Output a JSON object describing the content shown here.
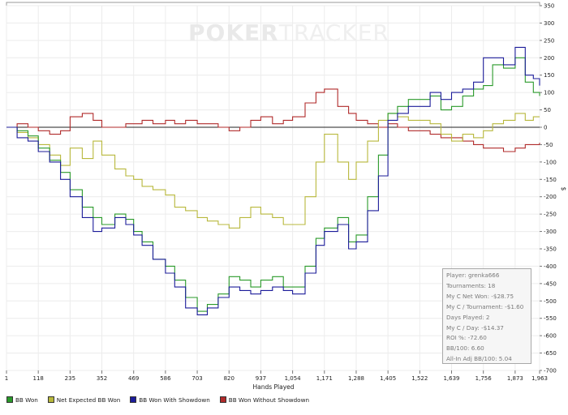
{
  "watermark": {
    "bold": "POKER",
    "light": "TRACKER"
  },
  "chart_data": {
    "type": "line",
    "title": "",
    "xlabel": "Hands Played",
    "ylabel": "$",
    "x_ticks": [
      1,
      118,
      235,
      352,
      469,
      586,
      703,
      820,
      937,
      1054,
      1171,
      1288,
      1405,
      1522,
      1639,
      1756,
      1873,
      1963
    ],
    "x_tick_labels": [
      "1",
      "118",
      "235",
      "352",
      "469",
      "586",
      "703",
      "820",
      "937",
      "1,054",
      "1,171",
      "1,288",
      "1,405",
      "1,522",
      "1,639",
      "1,756",
      "1,873",
      "1,963"
    ],
    "xlim": [
      1,
      1963
    ],
    "ylim": [
      -700,
      350
    ],
    "y_ticks": [
      350,
      300,
      250,
      200,
      150,
      100,
      50,
      0,
      -50,
      -100,
      -150,
      -200,
      -250,
      -300,
      -350,
      -400,
      -450,
      -500,
      -550,
      -600,
      -650,
      -700
    ],
    "grid": true,
    "legend_position": "bottom",
    "series": [
      {
        "name": "BB Won",
        "color": "#2a9a2a",
        "x": [
          1,
          40,
          80,
          118,
          160,
          200,
          235,
          280,
          320,
          352,
          400,
          440,
          469,
          500,
          540,
          586,
          620,
          660,
          703,
          740,
          780,
          820,
          860,
          900,
          937,
          980,
          1020,
          1054,
          1100,
          1140,
          1171,
          1220,
          1260,
          1288,
          1330,
          1370,
          1405,
          1440,
          1480,
          1522,
          1560,
          1600,
          1639,
          1680,
          1720,
          1756,
          1790,
          1830,
          1873,
          1910,
          1940,
          1963
        ],
        "y": [
          0,
          -10,
          -25,
          -60,
          -95,
          -130,
          -180,
          -230,
          -260,
          -280,
          -250,
          -265,
          -300,
          -330,
          -380,
          -400,
          -440,
          -490,
          -530,
          -510,
          -480,
          -430,
          -440,
          -460,
          -440,
          -430,
          -460,
          -460,
          -400,
          -320,
          -290,
          -260,
          -330,
          -310,
          -200,
          -80,
          40,
          60,
          80,
          80,
          90,
          50,
          60,
          90,
          110,
          120,
          180,
          170,
          200,
          130,
          100,
          90
        ]
      },
      {
        "name": "Net Expected BB Won",
        "color": "#b8b83c",
        "x": [
          1,
          40,
          80,
          118,
          160,
          200,
          235,
          280,
          320,
          352,
          400,
          440,
          469,
          500,
          540,
          586,
          620,
          660,
          703,
          740,
          780,
          820,
          860,
          900,
          937,
          980,
          1020,
          1054,
          1100,
          1140,
          1171,
          1220,
          1260,
          1288,
          1330,
          1370,
          1405,
          1440,
          1480,
          1522,
          1560,
          1600,
          1639,
          1680,
          1720,
          1756,
          1790,
          1830,
          1873,
          1910,
          1940,
          1963
        ],
        "y": [
          0,
          -15,
          -30,
          -50,
          -80,
          -110,
          -60,
          -90,
          -40,
          -80,
          -120,
          -140,
          -150,
          -170,
          -180,
          -195,
          -230,
          -240,
          -260,
          -270,
          -280,
          -290,
          -260,
          -230,
          -250,
          -260,
          -280,
          -280,
          -200,
          -100,
          -20,
          -100,
          -150,
          -100,
          -40,
          20,
          40,
          30,
          20,
          20,
          10,
          -20,
          -40,
          -20,
          -30,
          -10,
          10,
          20,
          40,
          20,
          30,
          30
        ]
      },
      {
        "name": "BB Won With Showdown",
        "color": "#1c1c9a",
        "x": [
          1,
          40,
          80,
          118,
          160,
          200,
          235,
          280,
          320,
          352,
          400,
          440,
          469,
          500,
          540,
          586,
          620,
          660,
          703,
          740,
          780,
          820,
          860,
          900,
          937,
          980,
          1020,
          1054,
          1100,
          1140,
          1171,
          1220,
          1260,
          1288,
          1330,
          1370,
          1405,
          1440,
          1480,
          1522,
          1560,
          1600,
          1639,
          1680,
          1720,
          1756,
          1790,
          1830,
          1873,
          1910,
          1940,
          1963
        ],
        "y": [
          0,
          -30,
          -40,
          -70,
          -100,
          -150,
          -200,
          -260,
          -300,
          -290,
          -260,
          -280,
          -310,
          -340,
          -380,
          -420,
          -460,
          -520,
          -540,
          -520,
          -490,
          -460,
          -470,
          -480,
          -470,
          -460,
          -470,
          -480,
          -420,
          -340,
          -300,
          -280,
          -350,
          -330,
          -240,
          -140,
          20,
          40,
          60,
          60,
          100,
          80,
          100,
          110,
          130,
          200,
          200,
          180,
          230,
          150,
          140,
          120
        ]
      },
      {
        "name": "BB Won Without Showdown",
        "color": "#b02a2a",
        "x": [
          1,
          40,
          80,
          118,
          160,
          200,
          235,
          280,
          320,
          352,
          400,
          440,
          469,
          500,
          540,
          586,
          620,
          660,
          703,
          740,
          780,
          820,
          860,
          900,
          937,
          980,
          1020,
          1054,
          1100,
          1140,
          1171,
          1220,
          1260,
          1288,
          1330,
          1370,
          1405,
          1440,
          1480,
          1522,
          1560,
          1600,
          1639,
          1680,
          1720,
          1756,
          1790,
          1830,
          1873,
          1910,
          1940,
          1963
        ],
        "y": [
          0,
          10,
          0,
          -10,
          -20,
          -10,
          30,
          40,
          20,
          0,
          0,
          10,
          10,
          20,
          10,
          20,
          10,
          20,
          10,
          10,
          0,
          -10,
          0,
          20,
          30,
          10,
          20,
          30,
          70,
          100,
          110,
          60,
          40,
          20,
          10,
          0,
          10,
          0,
          -10,
          -10,
          -20,
          -30,
          -30,
          -40,
          -50,
          -60,
          -60,
          -70,
          -60,
          -50,
          -50,
          -45
        ]
      }
    ]
  },
  "stats": {
    "player": "Player: grenka666",
    "tournaments": "Tournaments: 18",
    "net_won": "My C Net Won: -$28.75",
    "per_tournament": "My C / Tournament: -$1.60",
    "days_played": "Days Played: 2",
    "per_day": "My C / Day: -$14.37",
    "roi": "ROI %: -72.60",
    "bb100": "BB/100: 6.60",
    "allin_bb100": "All-In Adj BB/100: 5.04"
  }
}
